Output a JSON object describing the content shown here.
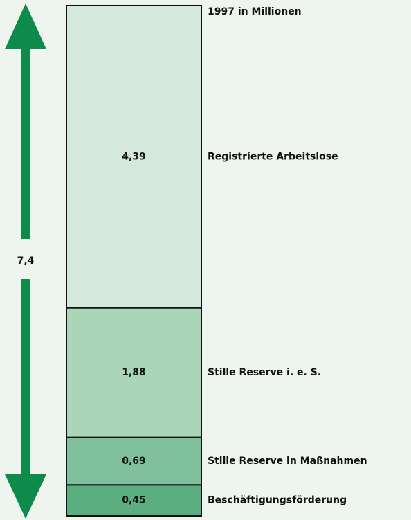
{
  "chart_data": {
    "type": "stacked-bar",
    "title": "1997  in Millionen",
    "series": [
      {
        "name": "Beschäftigungsförderung",
        "color": "#5aae80",
        "values": [
          0.45
        ],
        "value_labels": [
          "0,45"
        ]
      },
      {
        "name": "Stille Reserve in Maßnahmen",
        "color": "#80c09c",
        "values": [
          0.69
        ],
        "value_labels": [
          "0,69"
        ]
      },
      {
        "name": "Stille Reserve i. e. S.",
        "color": "#aad5b9",
        "values": [
          1.88
        ],
        "value_labels": [
          "1,88"
        ]
      },
      {
        "name": "Registrierte Arbeitslose",
        "color": "#d4e8dc",
        "values": [
          4.39
        ],
        "value_labels": [
          "4,39"
        ]
      }
    ],
    "total": {
      "value": 7.4,
      "label": "7,4"
    },
    "arrow_color": "#0e8a4a"
  }
}
